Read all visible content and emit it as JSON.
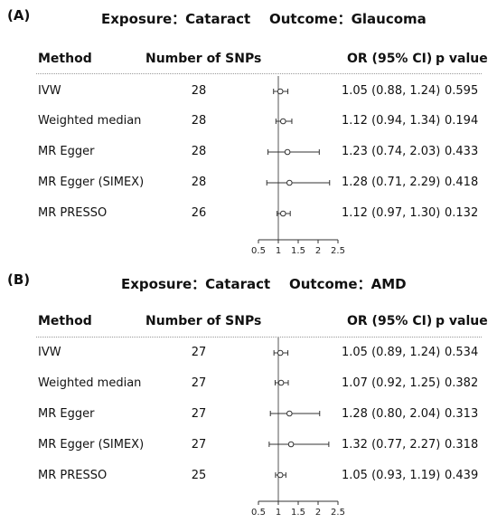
{
  "chart_data": [
    {
      "type": "forest",
      "panel_label": "(A)",
      "title_exposure": "Exposure：Cataract",
      "title_outcome": "Outcome：Glaucoma",
      "headers": {
        "method": "Method",
        "nsnps": "Number of SNPs",
        "or": "OR (95% CI)",
        "p": "p value"
      },
      "x_ticks": [
        "0.5",
        "1",
        "1.5",
        "2",
        "2.5"
      ],
      "xlim": [
        0.5,
        2.5
      ],
      "reference_line": 1,
      "rows": [
        {
          "method": "IVW",
          "nsnps": "28",
          "or": 1.05,
          "lo": 0.88,
          "hi": 1.24,
          "or_text": "1.05 (0.88, 1.24)",
          "p": "0.595"
        },
        {
          "method": "Weighted median",
          "nsnps": "28",
          "or": 1.12,
          "lo": 0.94,
          "hi": 1.34,
          "or_text": "1.12 (0.94, 1.34)",
          "p": "0.194"
        },
        {
          "method": "MR Egger",
          "nsnps": "28",
          "or": 1.23,
          "lo": 0.74,
          "hi": 2.03,
          "or_text": "1.23 (0.74, 2.03)",
          "p": "0.433"
        },
        {
          "method": "MR Egger (SIMEX)",
          "nsnps": "28",
          "or": 1.28,
          "lo": 0.71,
          "hi": 2.29,
          "or_text": "1.28 (0.71, 2.29)",
          "p": "0.418"
        },
        {
          "method": "MR PRESSO",
          "nsnps": "26",
          "or": 1.12,
          "lo": 0.97,
          "hi": 1.3,
          "or_text": "1.12 (0.97, 1.30)",
          "p": "0.132"
        }
      ]
    },
    {
      "type": "forest",
      "panel_label": "(B)",
      "title_exposure": "Exposure：Cataract",
      "title_outcome": "Outcome：AMD",
      "headers": {
        "method": "Method",
        "nsnps": "Number of SNPs",
        "or": "OR (95% CI)",
        "p": "p value"
      },
      "x_ticks": [
        "0.5",
        "1",
        "1.5",
        "2",
        "2.5"
      ],
      "xlim": [
        0.5,
        2.5
      ],
      "reference_line": 1,
      "rows": [
        {
          "method": "IVW",
          "nsnps": "27",
          "or": 1.05,
          "lo": 0.89,
          "hi": 1.24,
          "or_text": "1.05 (0.89, 1.24)",
          "p": "0.534"
        },
        {
          "method": "Weighted median",
          "nsnps": "27",
          "or": 1.07,
          "lo": 0.92,
          "hi": 1.25,
          "or_text": "1.07 (0.92, 1.25)",
          "p": "0.382"
        },
        {
          "method": "MR Egger",
          "nsnps": "27",
          "or": 1.28,
          "lo": 0.8,
          "hi": 2.04,
          "or_text": "1.28 (0.80, 2.04)",
          "p": "0.313"
        },
        {
          "method": "MR Egger (SIMEX)",
          "nsnps": "27",
          "or": 1.32,
          "lo": 0.77,
          "hi": 2.27,
          "or_text": "1.32 (0.77, 2.27)",
          "p": "0.318"
        },
        {
          "method": "MR PRESSO",
          "nsnps": "25",
          "or": 1.05,
          "lo": 0.93,
          "hi": 1.19,
          "or_text": "1.05 (0.93, 1.19)",
          "p": "0.439"
        }
      ]
    }
  ]
}
